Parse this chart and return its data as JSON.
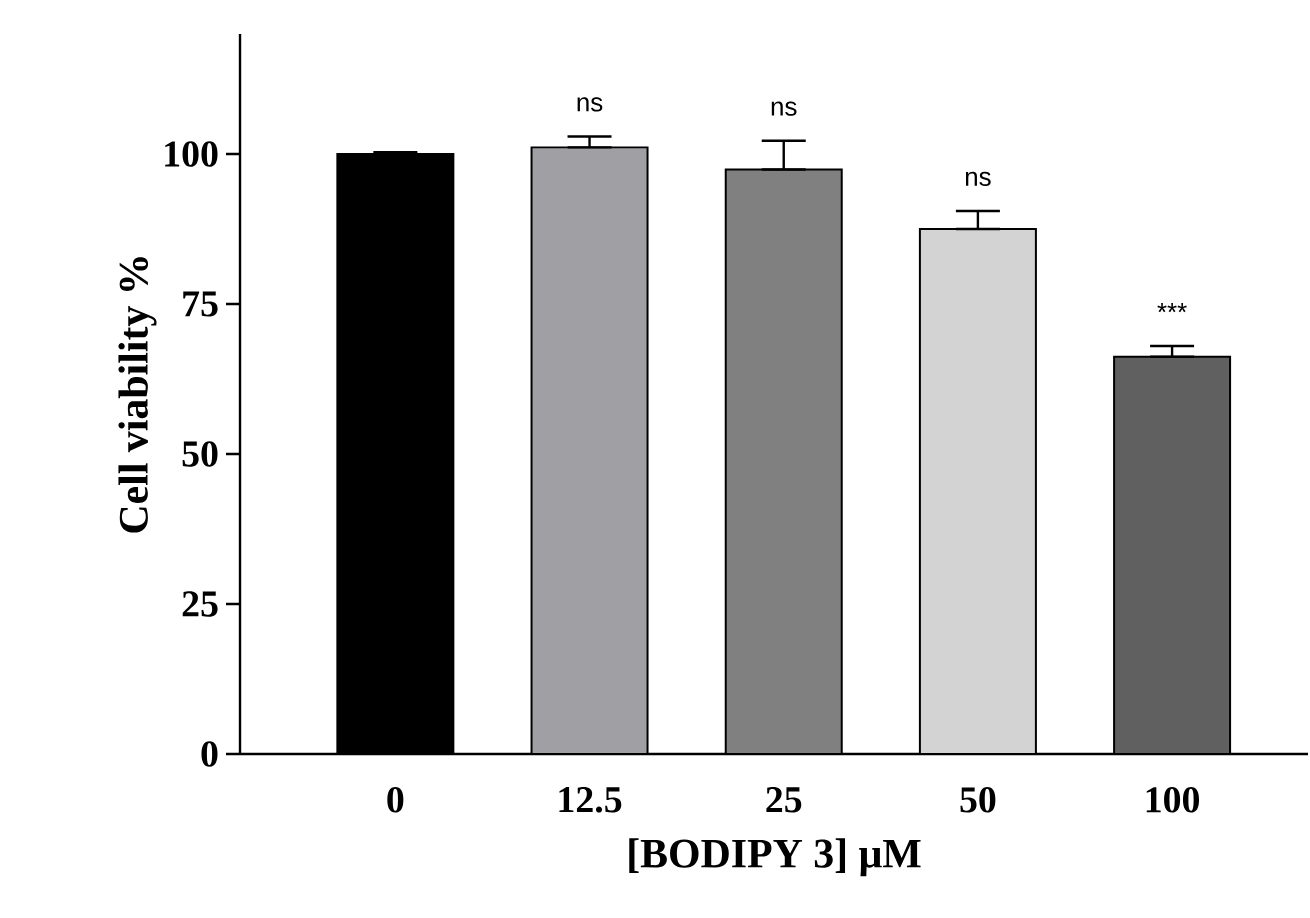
{
  "chart_data": {
    "type": "bar",
    "xlabel": "[BODIPY 3] μM",
    "ylabel": "Cell viability %",
    "categories": [
      "0",
      "12.5",
      "25",
      "50",
      "100"
    ],
    "values": [
      100,
      101.1,
      97.4,
      87.5,
      66.2
    ],
    "colors": [
      "#000000",
      "#a09fa4",
      "#808080",
      "#d3d3d3",
      "#606060"
    ],
    "errors": [
      [
        100,
        100.3
      ],
      [
        101.1,
        102.9
      ],
      [
        97.4,
        102.2
      ],
      [
        87.5,
        90.5
      ],
      [
        66.2,
        68.0
      ]
    ],
    "ylim": [
      0,
      120
    ],
    "yticks": [
      0,
      25,
      50,
      75,
      100
    ],
    "grid": false,
    "annotations": [
      "ns",
      "ns",
      "ns",
      "***"
    ]
  }
}
